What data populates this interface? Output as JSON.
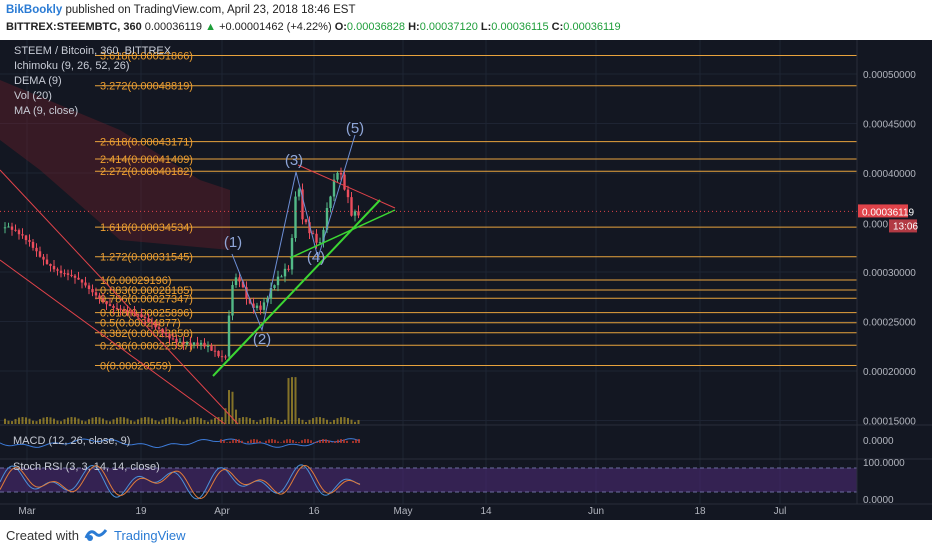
{
  "header": {
    "author": "BikBookly",
    "published_text": "published on TradingView.com, April 23, 2018 18:46 EST",
    "symbol": "BITTREX:STEEMBTC, 360",
    "last_price": "0.00036119",
    "change": "+0.00001462 (+4.22%)",
    "o_label": "O:",
    "o_value": "0.00036828",
    "h_label": "H:",
    "h_value": "0.00037120",
    "l_label": "L:",
    "l_value": "0.00036115",
    "c_label": "C:",
    "c_value": "0.00036119"
  },
  "legend": {
    "title": "STEEM / Bitcoin, 360, BITTREX",
    "indicators": [
      "Ichimoku (9, 26, 52, 26)",
      "DEMA (9)",
      "Vol (20)",
      "MA (9, close)"
    ]
  },
  "footer": {
    "created_with": "Created with",
    "brand": "TradingView"
  },
  "colors": {
    "background": "#131722",
    "fib_line": "#e8a33d",
    "fib_text": "#f0a030",
    "wave_label": "#8fa6d8",
    "trendline": "#3cd633",
    "price_tag": "#e0434a",
    "candle_up": "#53b987",
    "candle_down": "#eb4d5c",
    "volume": "#a08a2a",
    "rsi_band": "#4b2a73"
  },
  "chart_data": [
    {
      "type": "candlestick",
      "title": "STEEM / Bitcoin, 360, BITTREX",
      "x_ticks": [
        "Mar",
        "19",
        "Apr",
        "16",
        "May",
        "14",
        "Jun",
        "18",
        "Jul"
      ],
      "y_ticks": [
        "0.00050000",
        "0.00045000",
        "0.00040000",
        "0.00030000",
        "0.00025000",
        "0.00020000",
        "0.00015000"
      ],
      "ylim": [
        0.00013,
        0.00053
      ],
      "current_price_tag": "0.00036119",
      "countdown_tag": "13:06",
      "partial_tick": "0.000",
      "fib_levels": [
        {
          "label": "3.618(0.00051866)",
          "value": 0.00051866
        },
        {
          "label": "3.272(0.00048819)",
          "value": 0.00048819
        },
        {
          "label": "2.618(0.00043171)",
          "value": 0.00043171
        },
        {
          "label": "2.414(0.00041409)",
          "value": 0.00041409
        },
        {
          "label": "2.272(0.00040182)",
          "value": 0.00040182
        },
        {
          "label": "1.618(0.00034534)",
          "value": 0.00034534
        },
        {
          "label": "1.272(0.00031545)",
          "value": 0.00031545
        },
        {
          "label": "1(0.00029196)",
          "value": 0.00029196
        },
        {
          "label": "0.883(0.00028185)",
          "value": 0.00028185
        },
        {
          "label": "0.786(0.00027347)",
          "value": 0.00027347
        },
        {
          "label": "0.618(0.00025896)",
          "value": 0.00025896
        },
        {
          "label": "0.5(0.00024877)",
          "value": 0.00024877
        },
        {
          "label": "0.382(0.00023858)",
          "value": 0.00023858
        },
        {
          "label": "0.236(0.00022597)",
          "value": 0.00022597
        },
        {
          "label": "0(0.00020559)",
          "value": 0.00020559
        }
      ],
      "wave_labels": [
        "(1)",
        "(2)",
        "(3)",
        "(4)",
        "(5)"
      ]
    },
    {
      "type": "line",
      "title": "MACD (12, 26, close, 9)",
      "y_ticks": [
        "0.0000"
      ]
    },
    {
      "type": "line",
      "title": "Stoch RSI (3, 3, 14, 14, close)",
      "y_ticks": [
        "100.0000",
        "0.0000"
      ],
      "ylim": [
        0,
        100
      ]
    }
  ]
}
